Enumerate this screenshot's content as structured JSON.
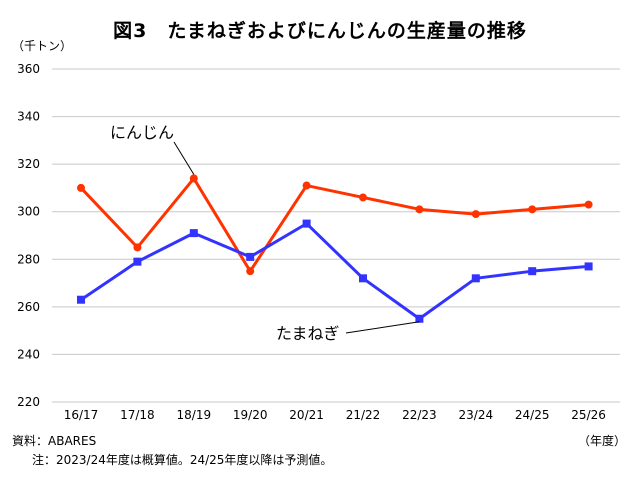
{
  "chart_data": {
    "type": "line",
    "title": "図3　たまねぎおよびにんじんの生産量の推移",
    "ylabel": "（千トン）",
    "xlabel": "（年度）",
    "categories": [
      "16/17",
      "17/18",
      "18/19",
      "19/20",
      "20/21",
      "21/22",
      "22/23",
      "23/24",
      "24/25",
      "25/26"
    ],
    "ylim": [
      220,
      360
    ],
    "yticks": [
      220,
      240,
      260,
      280,
      300,
      320,
      340,
      360
    ],
    "grid": true,
    "series": [
      {
        "name": "にんじん",
        "color": "#ff3300",
        "marker": "circle",
        "values": [
          310,
          285,
          314,
          275,
          311,
          306,
          301,
          299,
          301,
          303
        ]
      },
      {
        "name": "たまねぎ",
        "color": "#3333ff",
        "marker": "square",
        "values": [
          263,
          279,
          291,
          281,
          295,
          272,
          255,
          272,
          275,
          277
        ]
      }
    ],
    "annotations": [
      {
        "text": "にんじん",
        "series": 0,
        "point_index": 2
      },
      {
        "text": "たまねぎ",
        "series": 1,
        "point_index": 6
      }
    ]
  },
  "source": "資料：ABARES",
  "note": "注：2023/24年度は概算値。24/25年度以降は予測値。"
}
